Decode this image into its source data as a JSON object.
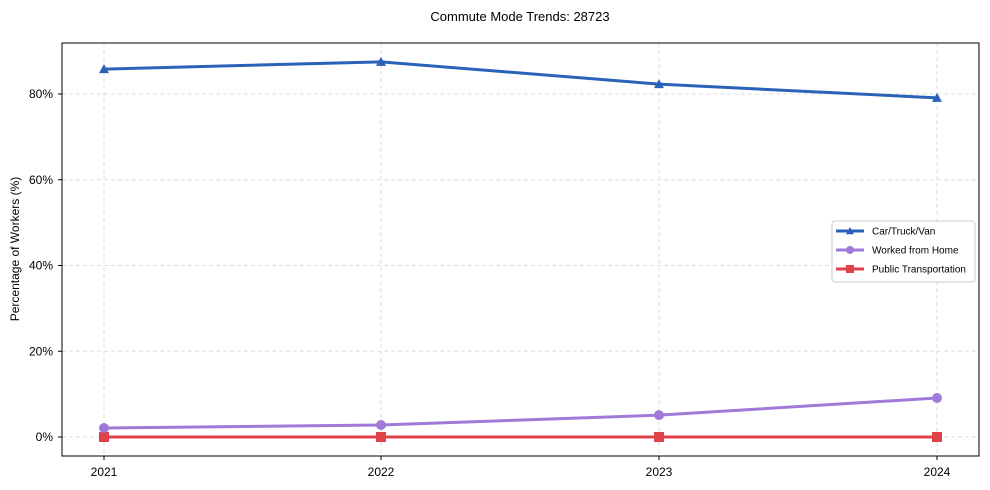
{
  "chart_data": {
    "type": "line",
    "title": "Commute Mode Trends: 28723",
    "xlabel": "",
    "ylabel": "Percentage of Workers (%)",
    "x": [
      "2021",
      "2022",
      "2023",
      "2024"
    ],
    "ylim": [
      -4.5,
      92
    ],
    "yticks": [
      0,
      20,
      40,
      60,
      80
    ],
    "ytick_labels": [
      "0%",
      "20%",
      "40%",
      "60%",
      "80%"
    ],
    "grid": true,
    "legend_position": "center right",
    "series": [
      {
        "name": "Car/Truck/Van",
        "color": "#2a62b8",
        "marker": "triangle",
        "values": [
          85.8,
          87.5,
          82.3,
          79.1
        ]
      },
      {
        "name": "Worked from Home",
        "color": "#a07ad8",
        "marker": "circle",
        "values": [
          2.1,
          2.8,
          5.1,
          9.1
        ]
      },
      {
        "name": "Public Transportation",
        "color": "#e0424a",
        "marker": "square",
        "values": [
          0.0,
          0.0,
          0.0,
          0.0
        ]
      }
    ]
  }
}
